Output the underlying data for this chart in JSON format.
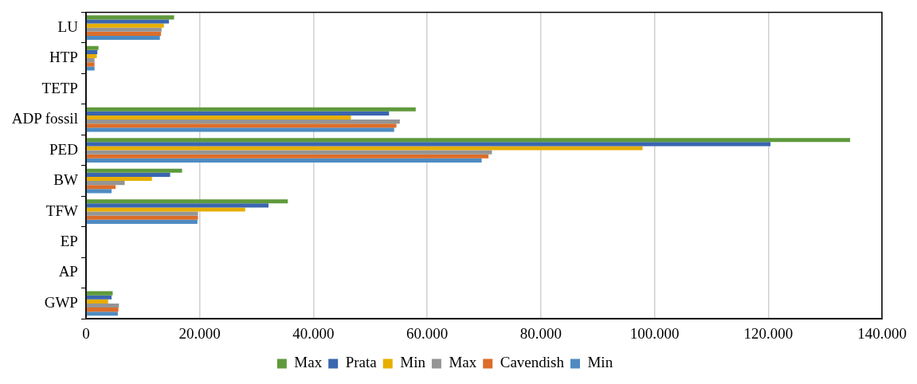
{
  "chart_data": {
    "type": "bar",
    "orientation": "horizontal",
    "categories": [
      "LU",
      "HTP",
      "TETP",
      "ADP fossil",
      "PED",
      "BW",
      "TFW",
      "EP",
      "AP",
      "GWP"
    ],
    "series": [
      {
        "name": "Max",
        "color": "#5f9a3c",
        "values": [
          15500,
          2200,
          0,
          58000,
          134400,
          16900,
          35500,
          0,
          0,
          4700
        ]
      },
      {
        "name": "Prata",
        "color": "#3a66b0",
        "values": [
          14600,
          2000,
          0,
          53300,
          120400,
          14800,
          32100,
          0,
          0,
          4500
        ]
      },
      {
        "name": "Min",
        "color": "#e7ae00",
        "values": [
          13700,
          1900,
          0,
          46600,
          97900,
          11600,
          28000,
          0,
          0,
          3900
        ]
      },
      {
        "name": "Max",
        "color": "#959595",
        "values": [
          13300,
          1500,
          0,
          55200,
          71400,
          6800,
          19700,
          0,
          0,
          5800
        ]
      },
      {
        "name": "Cavendish",
        "color": "#dc6d2a",
        "values": [
          13200,
          1500,
          0,
          54600,
          70800,
          5200,
          19700,
          0,
          0,
          5700
        ]
      },
      {
        "name": "Min",
        "color": "#4f8bc2",
        "values": [
          13000,
          1500,
          0,
          54200,
          69600,
          4500,
          19600,
          0,
          0,
          5600
        ]
      }
    ],
    "xlim": [
      0,
      140000
    ],
    "xticks": [
      0,
      {
        "value": 20000,
        "label": "20.000"
      },
      {
        "value": 40000,
        "label": "40.000"
      },
      {
        "value": 60000,
        "label": "60.000"
      },
      {
        "value": 80000,
        "label": "80.000"
      },
      {
        "value": 100000,
        "label": "100.000"
      },
      {
        "value": 120000,
        "label": "120.000"
      },
      {
        "value": 140000,
        "label": "140.000"
      }
    ],
    "grid": "x",
    "legend": "bottom"
  }
}
